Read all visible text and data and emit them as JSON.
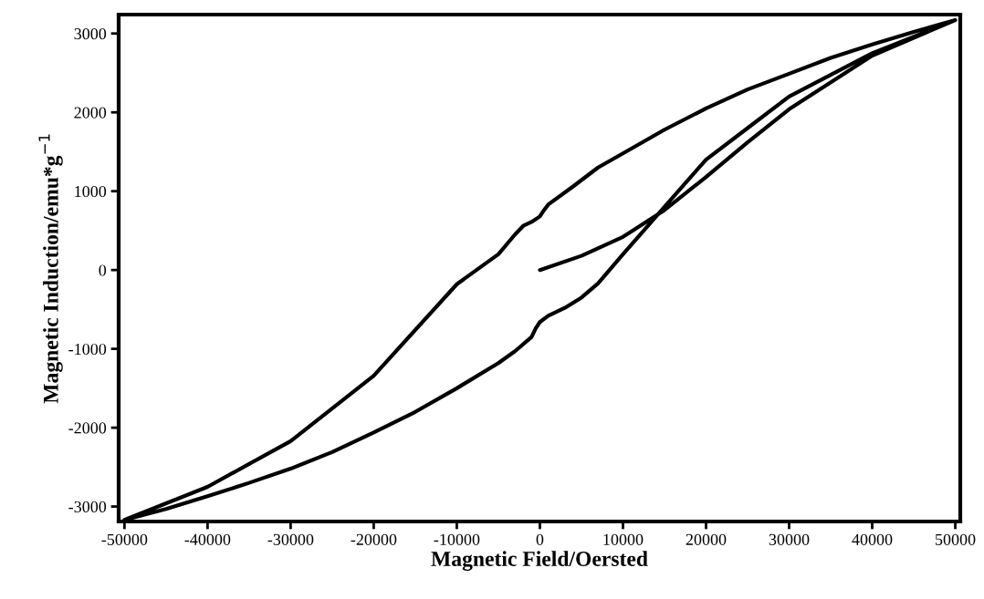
{
  "chart_data": {
    "type": "line",
    "xlabel": "Magnetic Field/Oersted",
    "ylabel": "Magnetic Induction/emu*g$^{−1}$",
    "xlim": [
      -50700,
      50600
    ],
    "ylim": [
      -3190,
      3240
    ],
    "xticks": [
      -50000,
      -40000,
      -30000,
      -20000,
      -10000,
      0,
      10000,
      20000,
      30000,
      40000,
      50000
    ],
    "yticks": [
      -3000,
      -2000,
      -1000,
      0,
      1000,
      2000,
      3000
    ],
    "grid": false,
    "marker": "none",
    "line_style": "solid",
    "series": [
      {
        "color": "#000000",
        "x": [
          0,
          5000,
          10000,
          15000,
          20000,
          25000,
          30000,
          40000,
          50000,
          45000,
          40000,
          35000,
          30000,
          25000,
          20000,
          15000,
          10000,
          7000,
          4000,
          1000,
          500,
          0,
          -1000,
          -2000,
          -3000,
          -5000,
          -10000,
          -20000,
          -30000,
          -40000,
          -50000,
          -45000,
          -40000,
          -35000,
          -30000,
          -25000,
          -20000,
          -15000,
          -10000,
          -5000,
          -3000,
          -1000,
          -500,
          0,
          1000,
          3000,
          5000,
          7000,
          10000,
          15000,
          20000,
          25000,
          30000,
          40000,
          50000
        ],
        "values": [
          0,
          180,
          420,
          760,
          1180,
          1620,
          2040,
          2720,
          3170,
          3020,
          2860,
          2690,
          2490,
          2290,
          2050,
          1780,
          1480,
          1300,
          1060,
          830,
          760,
          680,
          610,
          560,
          450,
          200,
          -180,
          -1340,
          -2170,
          -2750,
          -3170,
          -3030,
          -2870,
          -2700,
          -2520,
          -2310,
          -2060,
          -1800,
          -1500,
          -1180,
          -1030,
          -850,
          -740,
          -660,
          -580,
          -480,
          -350,
          -170,
          200,
          800,
          1400,
          1800,
          2200,
          2750,
          3170
        ]
      }
    ]
  }
}
